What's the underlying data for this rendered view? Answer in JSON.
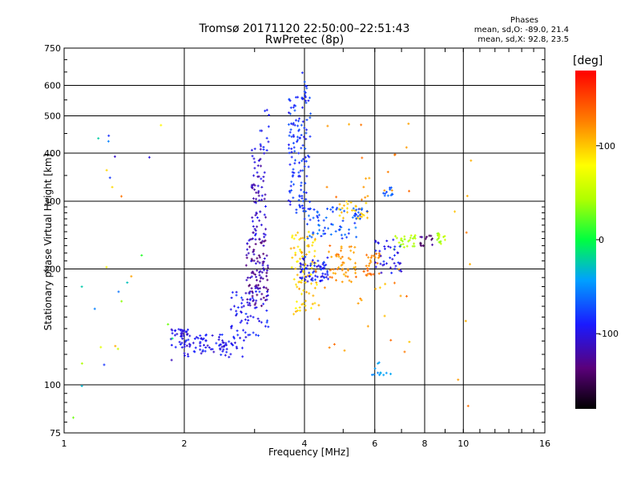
{
  "chart_data": {
    "type": "scatter",
    "title": "Tromsø 20171120 22:50:00–22:51:43",
    "subtitle": "RwPretec (8p)",
    "xlabel": "Frequency [MHz]",
    "ylabel": "Stationary phase Virtual Height [km]",
    "x_scale": "log",
    "y_scale": "log",
    "xlim": [
      1,
      16
    ],
    "ylim": [
      75,
      750
    ],
    "x_ticks": [
      "1",
      "2",
      "4",
      "6",
      "8",
      "10",
      "16"
    ],
    "x_tick_values": [
      1,
      2,
      4,
      6,
      8,
      10,
      16
    ],
    "y_ticks": [
      "75",
      "100",
      "200",
      "300",
      "400",
      "500",
      "600",
      "750"
    ],
    "y_tick_values": [
      75,
      100,
      200,
      300,
      400,
      500,
      600,
      750
    ],
    "grid": true,
    "phase_stats": {
      "title": "Phases",
      "o_line": "mean, sd,O: -89.0, 21.4",
      "x_line": "mean, sd,X:  92.8, 23.5"
    },
    "colorbar": {
      "unit": "[deg]",
      "range": [
        -180,
        180
      ],
      "ticks": [
        "100",
        "0",
        "-100"
      ],
      "tick_values": [
        100,
        0,
        -100
      ]
    },
    "clusters": [
      {
        "f": [
          1.85,
          2.05
        ],
        "h": [
          125,
          140
        ],
        "phase": [
          -115,
          -85
        ],
        "n": 40
      },
      {
        "f": [
          2.0,
          2.9
        ],
        "h": [
          118,
          135
        ],
        "phase": [
          -110,
          -80
        ],
        "n": 80
      },
      {
        "f": [
          2.6,
          3.25
        ],
        "h": [
          130,
          175
        ],
        "phase": [
          -105,
          -75
        ],
        "n": 60
      },
      {
        "f": [
          2.85,
          3.25
        ],
        "h": [
          160,
          240
        ],
        "phase": [
          -140,
          -100
        ],
        "n": 110
      },
      {
        "f": [
          2.95,
          3.2
        ],
        "h": [
          240,
          420
        ],
        "phase": [
          -125,
          -90
        ],
        "n": 70
      },
      {
        "f": [
          3.1,
          3.3
        ],
        "h": [
          390,
          530
        ],
        "phase": [
          -105,
          -80
        ],
        "n": 12
      },
      {
        "f": [
          3.65,
          4.15
        ],
        "h": [
          280,
          560
        ],
        "phase": [
          -100,
          -70
        ],
        "n": 130
      },
      {
        "f": [
          3.9,
          4.1
        ],
        "h": [
          560,
          650
        ],
        "phase": [
          -90,
          -70
        ],
        "n": 8
      },
      {
        "f": [
          3.7,
          4.3
        ],
        "h": [
          150,
          250
        ],
        "phase": [
          80,
          120
        ],
        "n": 90
      },
      {
        "f": [
          3.9,
          4.6
        ],
        "h": [
          185,
          215
        ],
        "phase": [
          -110,
          -70
        ],
        "n": 70
      },
      {
        "f": [
          4.0,
          5.4
        ],
        "h": [
          240,
          290
        ],
        "phase": [
          -85,
          -55
        ],
        "n": 60
      },
      {
        "f": [
          4.6,
          5.4
        ],
        "h": [
          185,
          230
        ],
        "phase": [
          110,
          140
        ],
        "n": 50
      },
      {
        "f": [
          4.8,
          5.8
        ],
        "h": [
          270,
          300
        ],
        "phase": [
          90,
          115
        ],
        "n": 30
      },
      {
        "f": [
          5.3,
          5.8
        ],
        "h": [
          270,
          290
        ],
        "phase": [
          -80,
          -60
        ],
        "n": 14
      },
      {
        "f": [
          5.6,
          6.2
        ],
        "h": [
          190,
          220
        ],
        "phase": [
          110,
          150
        ],
        "n": 30
      },
      {
        "f": [
          6.6,
          7.6
        ],
        "h": [
          225,
          245
        ],
        "phase": [
          30,
          60
        ],
        "n": 25
      },
      {
        "f": [
          6.0,
          7.0
        ],
        "h": [
          195,
          240
        ],
        "phase": [
          -110,
          -80
        ],
        "n": 40
      },
      {
        "f": [
          7.8,
          8.4
        ],
        "h": [
          228,
          245
        ],
        "phase": [
          -150,
          -110
        ],
        "n": 15
      },
      {
        "f": [
          8.6,
          9.0
        ],
        "h": [
          228,
          248
        ],
        "phase": [
          30,
          60
        ],
        "n": 14
      },
      {
        "f": [
          6.3,
          6.8
        ],
        "h": [
          310,
          330
        ],
        "phase": [
          -80,
          -60
        ],
        "n": 12
      },
      {
        "f": [
          5.9,
          6.6
        ],
        "h": [
          105,
          115
        ],
        "phase": [
          -60,
          -40
        ],
        "n": 12
      },
      {
        "f": [
          4.2,
          7.5
        ],
        "h": [
          120,
          200
        ],
        "phase": [
          100,
          140
        ],
        "n": 25
      },
      {
        "f": [
          4.2,
          7.5
        ],
        "h": [
          300,
          480
        ],
        "phase": [
          110,
          140
        ],
        "n": 20
      },
      {
        "f": [
          1.05,
          1.95
        ],
        "h": [
          80,
          480
        ],
        "phase": [
          -120,
          140
        ],
        "n": 28
      },
      {
        "f": [
          9.5,
          10.5
        ],
        "h": [
          80,
          480
        ],
        "phase": [
          100,
          140
        ],
        "n": 8
      }
    ]
  }
}
